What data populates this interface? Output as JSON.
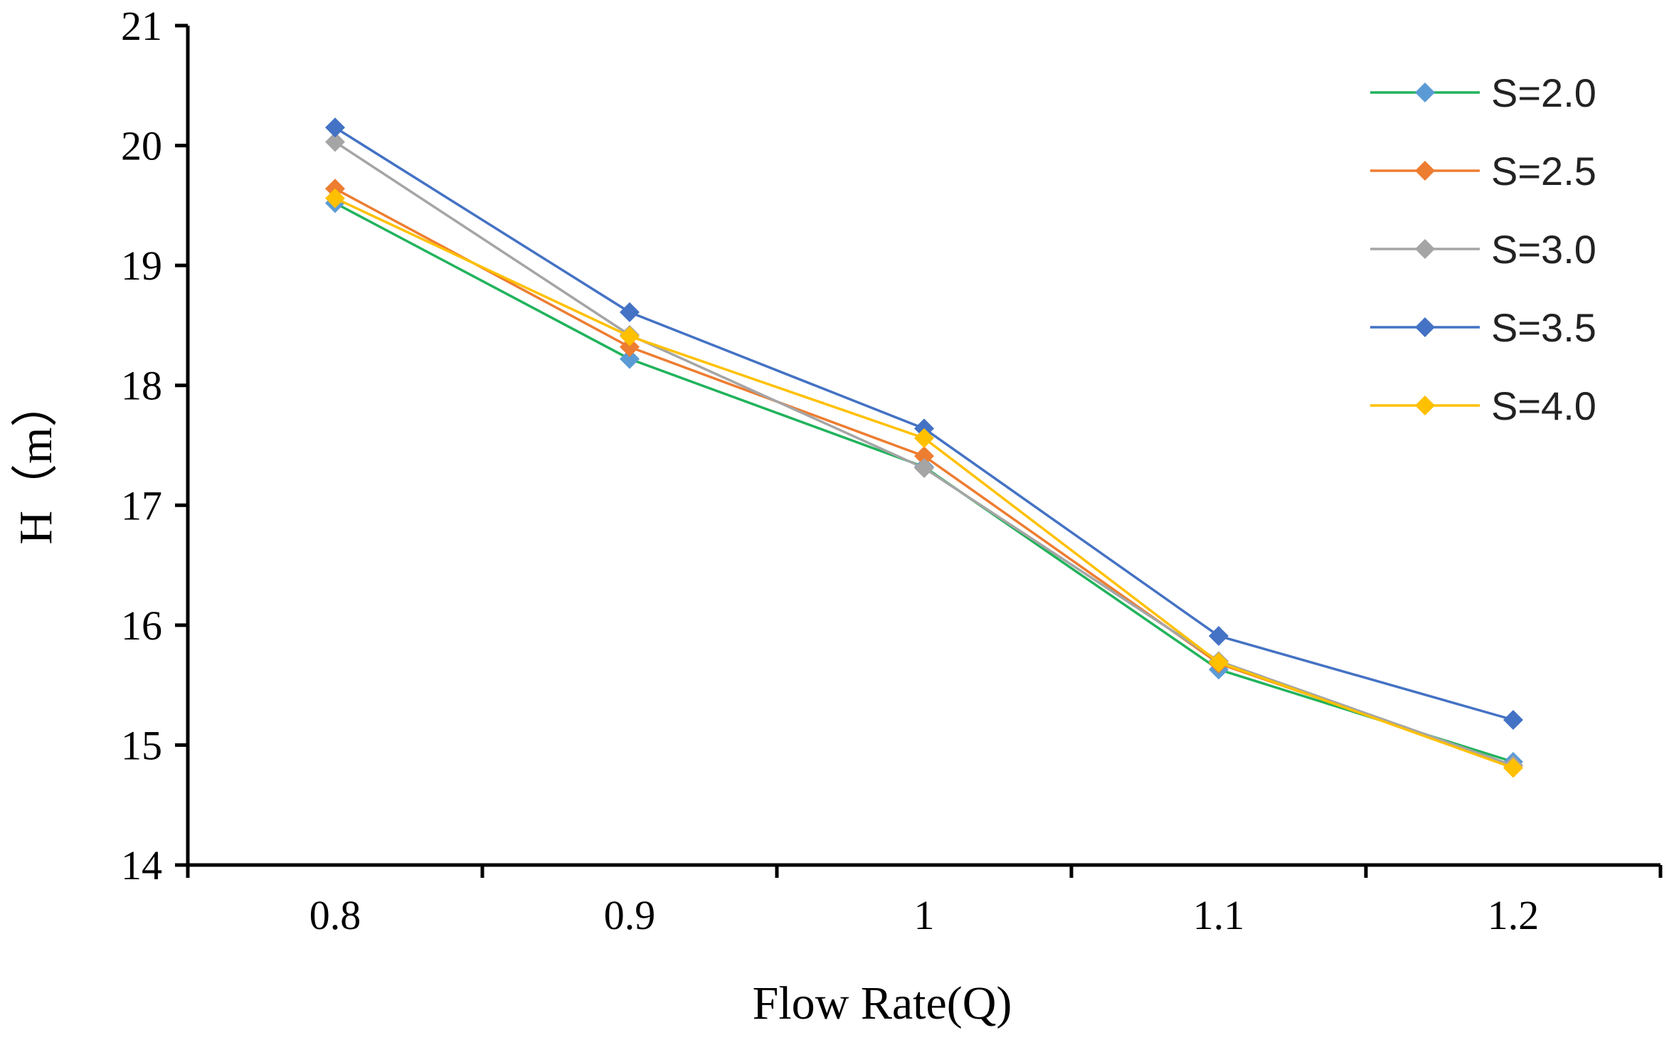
{
  "chart_data": {
    "type": "line",
    "title": "",
    "xlabel": "Flow Rate(Q)",
    "ylabel": "H（m）",
    "categories": [
      "0.8",
      "0.9",
      "1",
      "1.1",
      "1.2"
    ],
    "ylim": [
      14,
      21
    ],
    "yticks": [
      "14",
      "15",
      "16",
      "17",
      "18",
      "19",
      "20",
      "21"
    ],
    "legend_position": "top-right",
    "grid": false,
    "series": [
      {
        "name": "S=2.0",
        "color": "#21b35c",
        "marker_color": "#5b9bd5",
        "values": [
          19.52,
          18.22,
          17.32,
          15.63,
          14.86
        ]
      },
      {
        "name": "S=2.5",
        "color": "#ed7d31",
        "marker_color": "#ed7d31",
        "values": [
          19.64,
          18.32,
          17.41,
          15.68,
          14.83
        ]
      },
      {
        "name": "S=3.0",
        "color": "#a5a5a5",
        "marker_color": "#a5a5a5",
        "values": [
          20.03,
          18.42,
          17.31,
          15.7,
          14.83
        ]
      },
      {
        "name": "S=3.5",
        "color": "#4472c4",
        "marker_color": "#4472c4",
        "values": [
          20.15,
          18.61,
          17.64,
          15.91,
          15.21
        ]
      },
      {
        "name": "S=4.0",
        "color": "#ffc000",
        "marker_color": "#ffc000",
        "values": [
          19.56,
          18.41,
          17.56,
          15.69,
          14.81
        ]
      }
    ]
  }
}
